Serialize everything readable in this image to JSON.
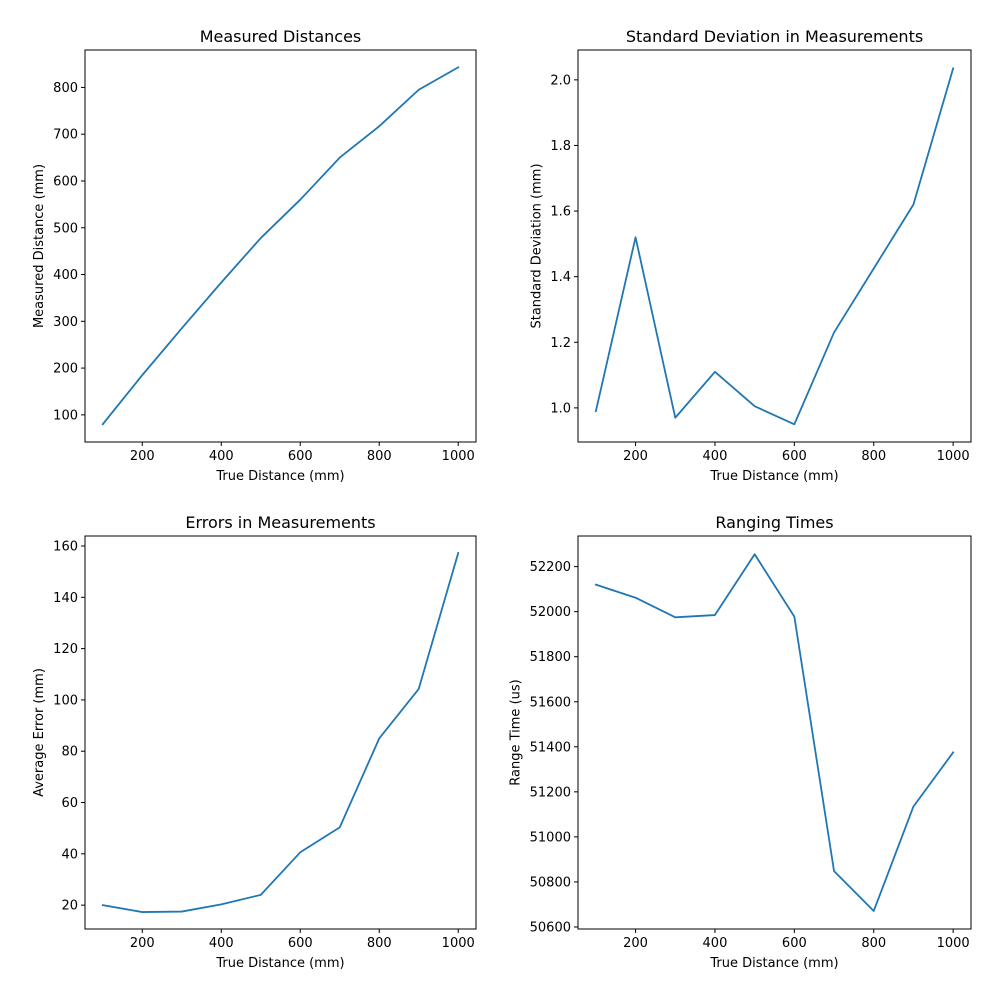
{
  "colors": {
    "line": "#1f77b4",
    "axes": "#000000",
    "background": "#ffffff"
  },
  "chart_data": [
    {
      "type": "line",
      "title": "Measured Distances",
      "xlabel": "True Distance (mm)",
      "ylabel": "Measured Distance (mm)",
      "xlim": [
        55,
        1045
      ],
      "ylim": [
        42,
        880
      ],
      "xticks": [
        200,
        400,
        600,
        800,
        1000
      ],
      "yticks": [
        100,
        200,
        300,
        400,
        500,
        600,
        700,
        800
      ],
      "grid": false,
      "x": [
        100,
        200,
        300,
        400,
        500,
        600,
        700,
        800,
        900,
        1000
      ],
      "y": [
        80,
        185,
        285,
        383,
        478,
        560,
        650,
        717,
        795,
        843
      ]
    },
    {
      "type": "line",
      "title": "Standard Deviation in Measurements",
      "xlabel": "True Distance (mm)",
      "ylabel": "Standard Deviation (mm)",
      "xlim": [
        55,
        1045
      ],
      "ylim": [
        0.896,
        2.091
      ],
      "xticks": [
        200,
        400,
        600,
        800,
        1000
      ],
      "yticks": [
        1.0,
        1.2,
        1.4,
        1.6,
        1.8,
        2.0
      ],
      "ytick_format": "1dp",
      "grid": false,
      "x": [
        100,
        200,
        300,
        400,
        500,
        600,
        700,
        800,
        900,
        1000
      ],
      "y": [
        0.99,
        1.52,
        0.97,
        1.11,
        1.005,
        0.95,
        1.23,
        1.425,
        1.62,
        2.035
      ]
    },
    {
      "type": "line",
      "title": "Errors in Measurements",
      "xlabel": "True Distance (mm)",
      "ylabel": "Average Error (mm)",
      "xlim": [
        55,
        1045
      ],
      "ylim": [
        10.7,
        163.9
      ],
      "xticks": [
        200,
        400,
        600,
        800,
        1000
      ],
      "yticks": [
        20,
        40,
        60,
        80,
        100,
        120,
        140,
        160
      ],
      "grid": false,
      "x": [
        100,
        200,
        300,
        400,
        500,
        600,
        700,
        800,
        900,
        1000
      ],
      "y": [
        20,
        17.3,
        17.5,
        20.3,
        24,
        40.6,
        50.3,
        85,
        104.3,
        157.3
      ]
    },
    {
      "type": "line",
      "title": "Ranging Times",
      "xlabel": "True Distance (mm)",
      "ylabel": "Range Time (us)",
      "xlim": [
        55,
        1045
      ],
      "ylim": [
        50591,
        52336
      ],
      "xticks": [
        200,
        400,
        600,
        800,
        1000
      ],
      "yticks": [
        50600,
        50800,
        51000,
        51200,
        51400,
        51600,
        51800,
        52000,
        52200
      ],
      "grid": false,
      "x": [
        100,
        200,
        300,
        400,
        500,
        600,
        700,
        800,
        900,
        1000
      ],
      "y": [
        52120,
        52062,
        51975,
        51985,
        52255,
        51978,
        50848,
        50671,
        51135,
        51375
      ]
    }
  ]
}
